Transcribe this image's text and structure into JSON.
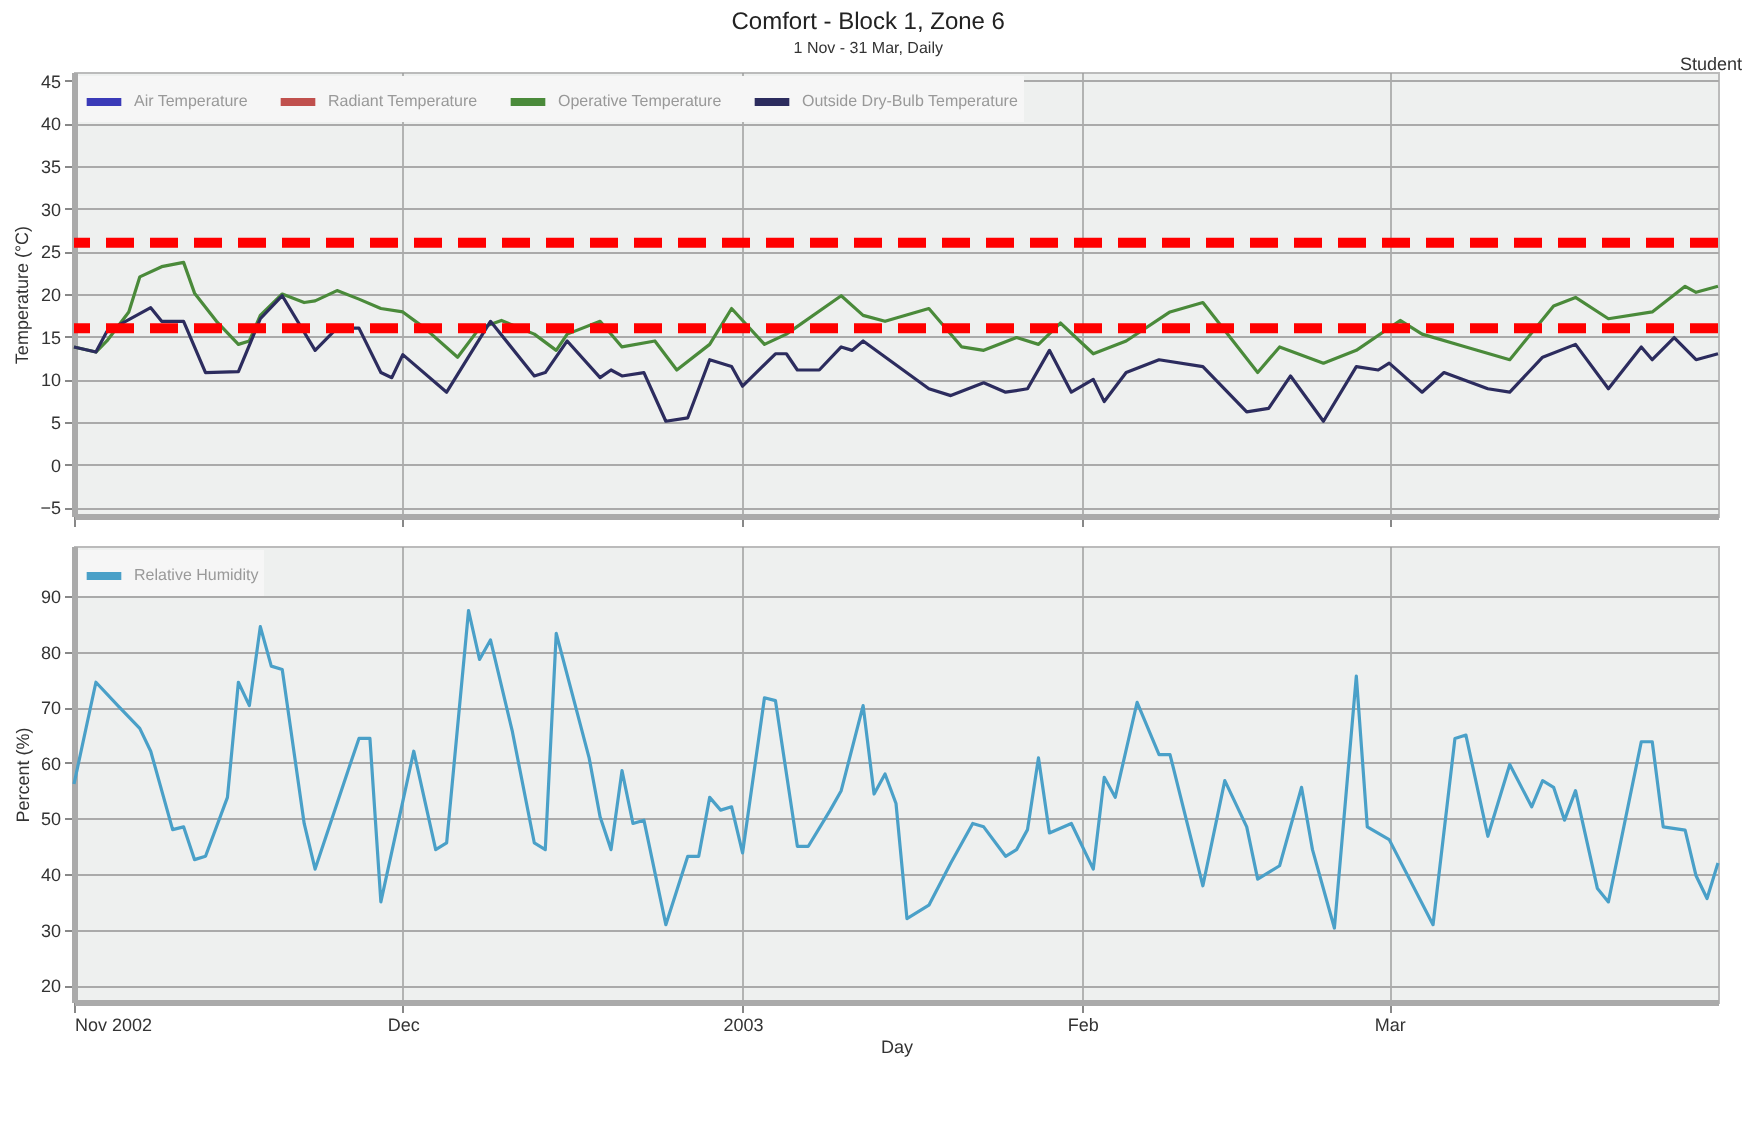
{
  "chart_data": [
    {
      "type": "line",
      "title": "Comfort - Block 1, Zone 6",
      "subtitle": "1 Nov - 31 Mar, Daily",
      "annotations": [
        "Student"
      ],
      "ylabel": "Temperature (°C)",
      "xlim": [
        "2002-11-01",
        "2003-03-31"
      ],
      "xticks": [
        {
          "value": "2002-11-01",
          "label": null
        },
        {
          "value": "2002-12-01",
          "label": null
        },
        {
          "value": "2003-01-01",
          "label": null
        },
        {
          "value": "2003-02-01",
          "label": null
        },
        {
          "value": "2003-03-01",
          "label": null
        }
      ],
      "ylim": [
        -6,
        46
      ],
      "yticks": [
        -5,
        0,
        5,
        10,
        15,
        20,
        25,
        30,
        35,
        40,
        45
      ],
      "grid": true,
      "legend": "top left",
      "tick_labels": "y",
      "ref_lines": [
        {
          "axis": "y",
          "value": 26,
          "color": "#ff0000",
          "line_style": "dashed"
        },
        {
          "axis": "y",
          "value": 16,
          "color": "#ff0000",
          "line_style": "dashed"
        }
      ],
      "series": [
        {
          "name": "Air Temperature",
          "color": "#3a3ab8"
        },
        {
          "name": "Radiant Temperature",
          "color": "#c0504d"
        },
        {
          "name": "Operative Temperature",
          "color": "#4a8a3a",
          "x": [
            "2002-11-01",
            "2002-11-03",
            "2002-11-04",
            "2002-11-06",
            "2002-11-07",
            "2002-11-09",
            "2002-11-11",
            "2002-11-12",
            "2002-11-14",
            "2002-11-16",
            "2002-11-17",
            "2002-11-18",
            "2002-11-20",
            "2002-11-22",
            "2002-11-23",
            "2002-11-25",
            "2002-11-27",
            "2002-11-29",
            "2002-12-01",
            "2002-12-03",
            "2002-12-06",
            "2002-12-08",
            "2002-12-10",
            "2002-12-13",
            "2002-12-15",
            "2002-12-16",
            "2002-12-19",
            "2002-12-21",
            "2002-12-24",
            "2002-12-26",
            "2002-12-29",
            "2002-12-31",
            "2003-01-03",
            "2003-01-05",
            "2003-01-10",
            "2003-01-12",
            "2003-01-14",
            "2003-01-18",
            "2003-01-21",
            "2003-01-23",
            "2003-01-26",
            "2003-01-28",
            "2003-01-30",
            "2003-02-02",
            "2003-02-05",
            "2003-02-09",
            "2003-02-12",
            "2003-02-17",
            "2003-02-19",
            "2003-02-23",
            "2003-02-26",
            "2003-03-02",
            "2003-03-04",
            "2003-03-08",
            "2003-03-12",
            "2003-03-16",
            "2003-03-18",
            "2003-03-21",
            "2003-03-25",
            "2003-03-28",
            "2003-03-29",
            "2003-03-31"
          ],
          "values": [
            13.8,
            13.2,
            14.5,
            17.9,
            22,
            23.2,
            23.7,
            20.1,
            16.8,
            14.1,
            14.5,
            17.5,
            20,
            19,
            19.2,
            20.4,
            19.4,
            18.3,
            17.9,
            16,
            12.6,
            16,
            16.9,
            15.3,
            13.4,
            15.3,
            16.8,
            13.8,
            14.5,
            11.1,
            14.1,
            18.3,
            14.1,
            15.3,
            19.8,
            17.5,
            16.8,
            18.3,
            13.8,
            13.4,
            14.9,
            14.1,
            16.6,
            13,
            14.5,
            17.9,
            19,
            10.8,
            13.8,
            11.9,
            13.4,
            16.9,
            15.3,
            13.8,
            12.3,
            18.6,
            19.6,
            17.1,
            17.9,
            20.9,
            20.2,
            20.9
          ]
        },
        {
          "name": "Outside Dry-Bulb Temperature",
          "color": "#2c2c5e",
          "x": [
            "2002-11-01",
            "2002-11-03",
            "2002-11-04",
            "2002-11-08",
            "2002-11-09",
            "2002-11-11",
            "2002-11-13",
            "2002-11-16",
            "2002-11-18",
            "2002-11-20",
            "2002-11-23",
            "2002-11-25",
            "2002-11-27",
            "2002-11-29",
            "2002-11-30",
            "2002-12-01",
            "2002-12-05",
            "2002-12-09",
            "2002-12-13",
            "2002-12-14",
            "2002-12-16",
            "2002-12-19",
            "2002-12-20",
            "2002-12-21",
            "2002-12-23",
            "2002-12-25",
            "2002-12-27",
            "2002-12-29",
            "2002-12-31",
            "2003-01-01",
            "2003-01-04",
            "2003-01-05",
            "2003-01-06",
            "2003-01-08",
            "2003-01-10",
            "2003-01-11",
            "2003-01-12",
            "2003-01-18",
            "2003-01-20",
            "2003-01-23",
            "2003-01-25",
            "2003-01-27",
            "2003-01-29",
            "2003-01-31",
            "2003-02-02",
            "2003-02-03",
            "2003-02-05",
            "2003-02-08",
            "2003-02-12",
            "2003-02-16",
            "2003-02-18",
            "2003-02-20",
            "2003-02-23",
            "2003-02-26",
            "2003-02-28",
            "2003-03-01",
            "2003-03-04",
            "2003-03-06",
            "2003-03-10",
            "2003-03-12",
            "2003-03-15",
            "2003-03-18",
            "2003-03-21",
            "2003-03-24",
            "2003-03-25",
            "2003-03-27",
            "2003-03-29",
            "2003-03-31"
          ],
          "values": [
            13.8,
            13.2,
            15.6,
            18.4,
            16.8,
            16.8,
            10.8,
            10.9,
            17.1,
            19.8,
            13.4,
            16,
            16,
            10.8,
            10.2,
            12.9,
            8.5,
            16.8,
            10.4,
            10.8,
            14.5,
            10.2,
            11.1,
            10.4,
            10.8,
            5.1,
            5.5,
            12.3,
            11.5,
            9.2,
            13,
            13,
            11.1,
            11.1,
            13.8,
            13.4,
            14.5,
            8.9,
            8.1,
            9.6,
            8.5,
            8.9,
            13.4,
            8.5,
            10,
            7.4,
            10.8,
            12.3,
            11.5,
            6.2,
            6.6,
            10.4,
            5.1,
            11.5,
            11.1,
            11.9,
            8.5,
            10.8,
            8.9,
            8.5,
            12.6,
            14.1,
            8.9,
            13.8,
            12.3,
            14.9,
            12.3,
            13
          ]
        }
      ]
    },
    {
      "type": "line",
      "xlabel": "Day",
      "ylabel": "Percent (%)",
      "xlim": [
        "2002-11-01",
        "2003-03-31"
      ],
      "xticks": [
        {
          "value": "2002-11-01",
          "label": "Nov 2002"
        },
        {
          "value": "2002-12-01",
          "label": "Dec"
        },
        {
          "value": "2003-01-01",
          "label": "2003"
        },
        {
          "value": "2003-02-01",
          "label": "Feb"
        },
        {
          "value": "2003-03-01",
          "label": "Mar"
        }
      ],
      "ylim": [
        17,
        99
      ],
      "yticks": [
        20,
        30,
        40,
        50,
        60,
        70,
        80,
        90
      ],
      "grid": true,
      "legend": "top left",
      "series": [
        {
          "name": "Relative Humidity",
          "color": "#4aa0c8",
          "x": [
            "2002-11-01",
            "2002-11-03",
            "2002-11-05",
            "2002-11-07",
            "2002-11-08",
            "2002-11-10",
            "2002-11-11",
            "2002-11-12",
            "2002-11-13",
            "2002-11-15",
            "2002-11-16",
            "2002-11-17",
            "2002-11-18",
            "2002-11-19",
            "2002-11-20",
            "2002-11-22",
            "2002-11-23",
            "2002-11-26",
            "2002-11-27",
            "2002-11-28",
            "2002-11-29",
            "2002-12-02",
            "2002-12-04",
            "2002-12-05",
            "2002-12-07",
            "2002-12-08",
            "2002-12-09",
            "2002-12-11",
            "2002-12-13",
            "2002-12-14",
            "2002-12-15",
            "2002-12-18",
            "2002-12-19",
            "2002-12-20",
            "2002-12-21",
            "2002-12-22",
            "2002-12-23",
            "2002-12-25",
            "2002-12-27",
            "2002-12-28",
            "2002-12-29",
            "2002-12-30",
            "2002-12-31",
            "2003-01-01",
            "2003-01-03",
            "2003-01-04",
            "2003-01-06",
            "2003-01-07",
            "2003-01-09",
            "2003-01-10",
            "2003-01-12",
            "2003-01-13",
            "2003-01-14",
            "2003-01-15",
            "2003-01-16",
            "2003-01-18",
            "2003-01-20",
            "2003-01-22",
            "2003-01-23",
            "2003-01-25",
            "2003-01-26",
            "2003-01-27",
            "2003-01-28",
            "2003-01-29",
            "2003-01-31",
            "2003-02-02",
            "2003-02-03",
            "2003-02-04",
            "2003-02-06",
            "2003-02-08",
            "2003-02-09",
            "2003-02-12",
            "2003-02-14",
            "2003-02-16",
            "2003-02-17",
            "2003-02-19",
            "2003-02-21",
            "2003-02-22",
            "2003-02-24",
            "2003-02-26",
            "2003-02-27",
            "2003-03-01",
            "2003-03-05",
            "2003-03-07",
            "2003-03-08",
            "2003-03-10",
            "2003-03-12",
            "2003-03-14",
            "2003-03-15",
            "2003-03-16",
            "2003-03-17",
            "2003-03-18",
            "2003-03-20",
            "2003-03-21",
            "2003-03-24",
            "2003-03-25",
            "2003-03-26",
            "2003-03-28",
            "2003-03-29",
            "2003-03-30",
            "2003-03-31"
          ],
          "values": [
            56.2,
            74.5,
            70.3,
            66.2,
            62.1,
            48,
            48.5,
            42.6,
            43.2,
            53.8,
            74.5,
            70.3,
            84.5,
            77.4,
            76.8,
            49.1,
            40.9,
            58.6,
            64.4,
            64.4,
            35,
            62.1,
            44.4,
            45.6,
            87.4,
            78.6,
            82.1,
            65.6,
            45.6,
            44.4,
            83.3,
            60.9,
            50.3,
            44.4,
            58.6,
            49.1,
            49.7,
            30.9,
            43.2,
            43.2,
            53.8,
            51.5,
            52.1,
            43.8,
            71.7,
            71.2,
            45,
            45,
            51.5,
            55,
            70.3,
            54.4,
            58,
            52.7,
            32,
            34.4,
            42,
            49.1,
            48.5,
            43.2,
            44.4,
            48,
            60.9,
            47.4,
            49.1,
            40.9,
            57.4,
            53.8,
            70.9,
            61.5,
            61.5,
            37.9,
            56.8,
            48.5,
            39.1,
            41.5,
            55.6,
            44.4,
            30.3,
            75.6,
            48.5,
            46.2,
            30.9,
            64.4,
            65,
            46.8,
            59.7,
            52.1,
            56.8,
            55.6,
            49.7,
            55,
            37.4,
            35,
            63.8,
            63.8,
            48.5,
            47.9,
            39.7,
            35.6,
            42
          ]
        }
      ]
    }
  ]
}
